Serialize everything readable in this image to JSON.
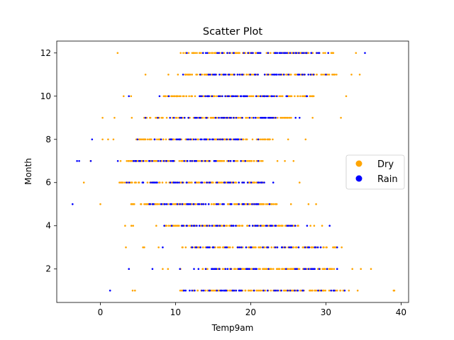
{
  "chart_data": {
    "type": "scatter",
    "title": "Scatter Plot",
    "xlabel": "Temp9am",
    "ylabel": "Month",
    "xlim": [
      -5.8,
      41.0
    ],
    "ylim": [
      0.45,
      12.55
    ],
    "xticks": [
      0,
      10,
      20,
      30,
      40
    ],
    "yticks": [
      2,
      4,
      6,
      8,
      10,
      12
    ],
    "grid": false,
    "legend_position": "center-right",
    "series": [
      {
        "name": "Dry",
        "color": "#ffa500",
        "ranges": [
          {
            "month": 1,
            "min": 4.3,
            "max": 39.1,
            "dense": [
              10.5,
              32.5
            ]
          },
          {
            "month": 2,
            "min": 8.3,
            "max": 36.0,
            "dense": [
              13.5,
              31.0
            ]
          },
          {
            "month": 3,
            "min": 3.4,
            "max": 32.1,
            "dense": [
              12.0,
              31.5
            ]
          },
          {
            "month": 4,
            "min": 3.3,
            "max": 29.5,
            "dense": [
              8.5,
              27.0
            ]
          },
          {
            "month": 5,
            "min": 0.0,
            "max": 28.7,
            "dense": [
              4.0,
              23.5
            ]
          },
          {
            "month": 6,
            "min": -2.2,
            "max": 26.5,
            "dense": [
              2.5,
              22.0
            ]
          },
          {
            "month": 7,
            "min": -1.3,
            "max": 25.7,
            "dense": [
              3.5,
              22.0
            ]
          },
          {
            "month": 8,
            "min": 0.3,
            "max": 27.3,
            "dense": [
              4.5,
              23.0
            ]
          },
          {
            "month": 9,
            "min": 0.3,
            "max": 32.0,
            "dense": [
              6.0,
              26.0
            ]
          },
          {
            "month": 10,
            "min": 3.1,
            "max": 32.7,
            "dense": [
              8.5,
              29.0
            ]
          },
          {
            "month": 11,
            "min": 6.0,
            "max": 34.5,
            "dense": [
              11.0,
              31.5
            ]
          },
          {
            "month": 12,
            "min": 2.3,
            "max": 34.0,
            "dense": [
              11.0,
              31.0
            ]
          }
        ]
      },
      {
        "name": "Rain",
        "color": "#0000ff",
        "ranges": [
          {
            "month": 1,
            "min": 1.3,
            "max": 32.5,
            "dense": [
              11.0,
              31.0
            ]
          },
          {
            "month": 2,
            "min": 3.8,
            "max": 31.5,
            "dense": [
              13.0,
              30.5
            ]
          },
          {
            "month": 3,
            "min": 8.3,
            "max": 31.5,
            "dense": [
              12.0,
              29.5
            ]
          },
          {
            "month": 4,
            "min": 8.5,
            "max": 30.5,
            "dense": [
              10.5,
              26.0
            ]
          },
          {
            "month": 5,
            "min": -3.7,
            "max": 22.5,
            "dense": [
              6.5,
              21.5
            ]
          },
          {
            "month": 6,
            "min": 3.5,
            "max": 23.0,
            "dense": [
              5.0,
              22.0
            ]
          },
          {
            "month": 7,
            "min": -3.1,
            "max": 21.0,
            "dense": [
              4.0,
              19.5
            ]
          },
          {
            "month": 8,
            "min": -1.1,
            "max": 21.0,
            "dense": [
              7.0,
              19.0
            ]
          },
          {
            "month": 9,
            "min": 6.0,
            "max": 26.5,
            "dense": [
              9.0,
              24.5
            ]
          },
          {
            "month": 10,
            "min": 3.8,
            "max": 27.5,
            "dense": [
              13.0,
              25.0
            ]
          },
          {
            "month": 11,
            "min": 11.0,
            "max": 30.0,
            "dense": [
              14.0,
              28.5
            ]
          },
          {
            "month": 12,
            "min": 11.5,
            "max": 35.2,
            "dense": [
              14.0,
              31.0
            ]
          }
        ]
      }
    ]
  }
}
